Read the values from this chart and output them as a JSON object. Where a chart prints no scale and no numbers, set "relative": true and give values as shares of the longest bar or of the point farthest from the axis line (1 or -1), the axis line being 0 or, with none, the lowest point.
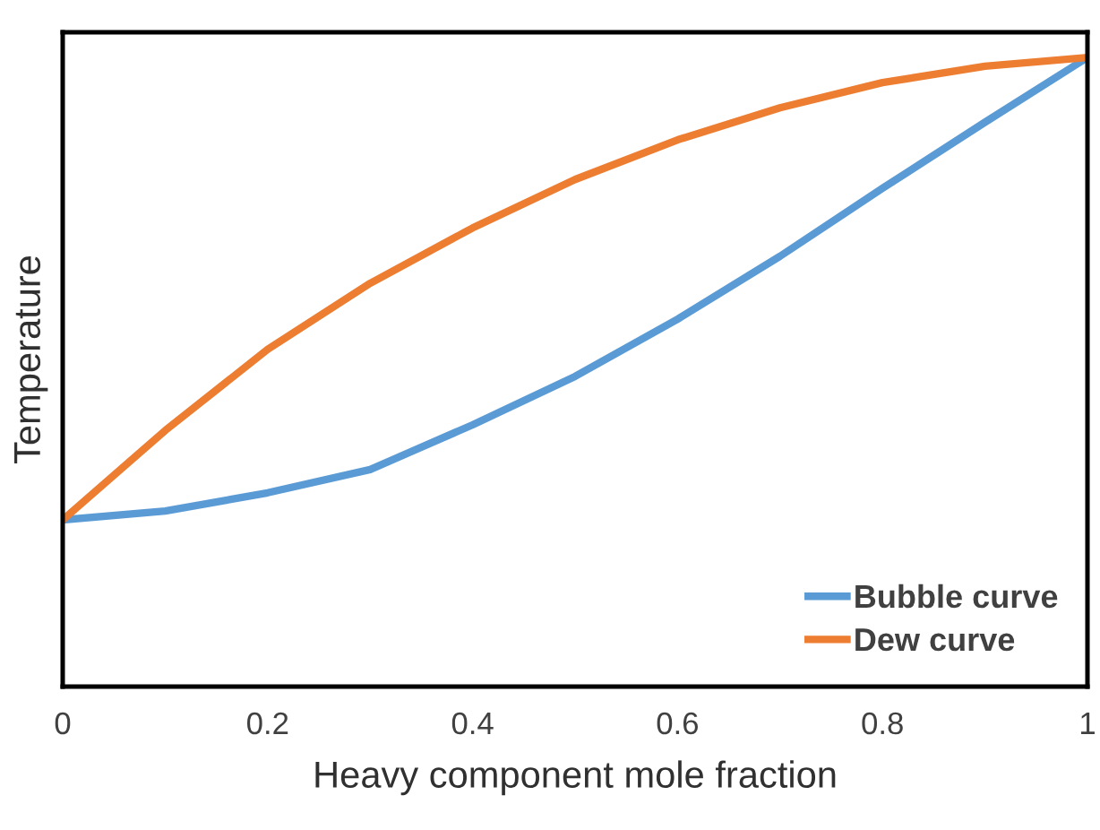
{
  "chart_data": {
    "type": "line",
    "xlabel": "Heavy component mole fraction",
    "ylabel": "Temperature",
    "relative": true,
    "x": [
      0,
      0.1,
      0.2,
      0.3,
      0.4,
      0.5,
      0.6,
      0.7,
      0.8,
      0.9,
      1
    ],
    "xlim": [
      0,
      1
    ],
    "xticks": [
      0,
      0.2,
      0.4,
      0.6,
      0.8,
      1
    ],
    "series": [
      {
        "name": "Bubble curve",
        "color": "#5b9bd5",
        "values": [
          0.265,
          0.279,
          0.308,
          0.345,
          0.416,
          0.493,
          0.584,
          0.684,
          0.792,
          0.897,
          1
        ]
      },
      {
        "name": "Dew curve",
        "color": "#ed7d31",
        "values": [
          0.265,
          0.407,
          0.536,
          0.641,
          0.729,
          0.806,
          0.869,
          0.92,
          0.96,
          0.986,
          1
        ]
      }
    ],
    "legend": "bottom right",
    "grid": false,
    "marker": "none",
    "line_style": "solid"
  }
}
